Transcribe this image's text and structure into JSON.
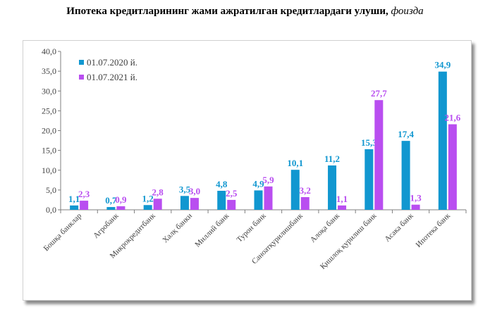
{
  "title": {
    "main": "Ипотека кредитларининг жами ажратилган кредитлардаги улуши,",
    "unit": "фоизда"
  },
  "colors": {
    "series1": "#1197d0",
    "series2": "#b94ef0",
    "axis": "#7f7f7f",
    "grid": "#d9d9d9"
  },
  "chart_data": {
    "type": "bar",
    "title": "Ипотека кредитларининг жами ажратилган кредитлардаги улуши, фоизда",
    "categories": [
      "Бошқа банклар",
      "Агробанк",
      "Микрокредитбанк",
      "Халқ банки",
      "Миллий банк",
      "Турон банк",
      "Саноатқурилишбанк",
      "Алоқа банк",
      "Қишлоқ қурилиш банк",
      "Асака банк",
      "Ипотека банк"
    ],
    "series": [
      {
        "name": "01.07.2020 й.",
        "values": [
          1.1,
          0.7,
          1.2,
          3.5,
          4.8,
          4.9,
          10.1,
          11.2,
          15.3,
          17.4,
          34.9
        ]
      },
      {
        "name": "01.07.2021 й.",
        "values": [
          2.3,
          0.9,
          2.8,
          3.0,
          2.5,
          5.9,
          3.2,
          1.1,
          27.7,
          1.3,
          21.6
        ]
      }
    ],
    "ylim": [
      0,
      40
    ],
    "yticks": [
      "0,0",
      "5,0",
      "10,0",
      "15,0",
      "20,0",
      "25,0",
      "30,0",
      "35,0",
      "40,0"
    ],
    "legend": "top-left",
    "grid": false
  }
}
